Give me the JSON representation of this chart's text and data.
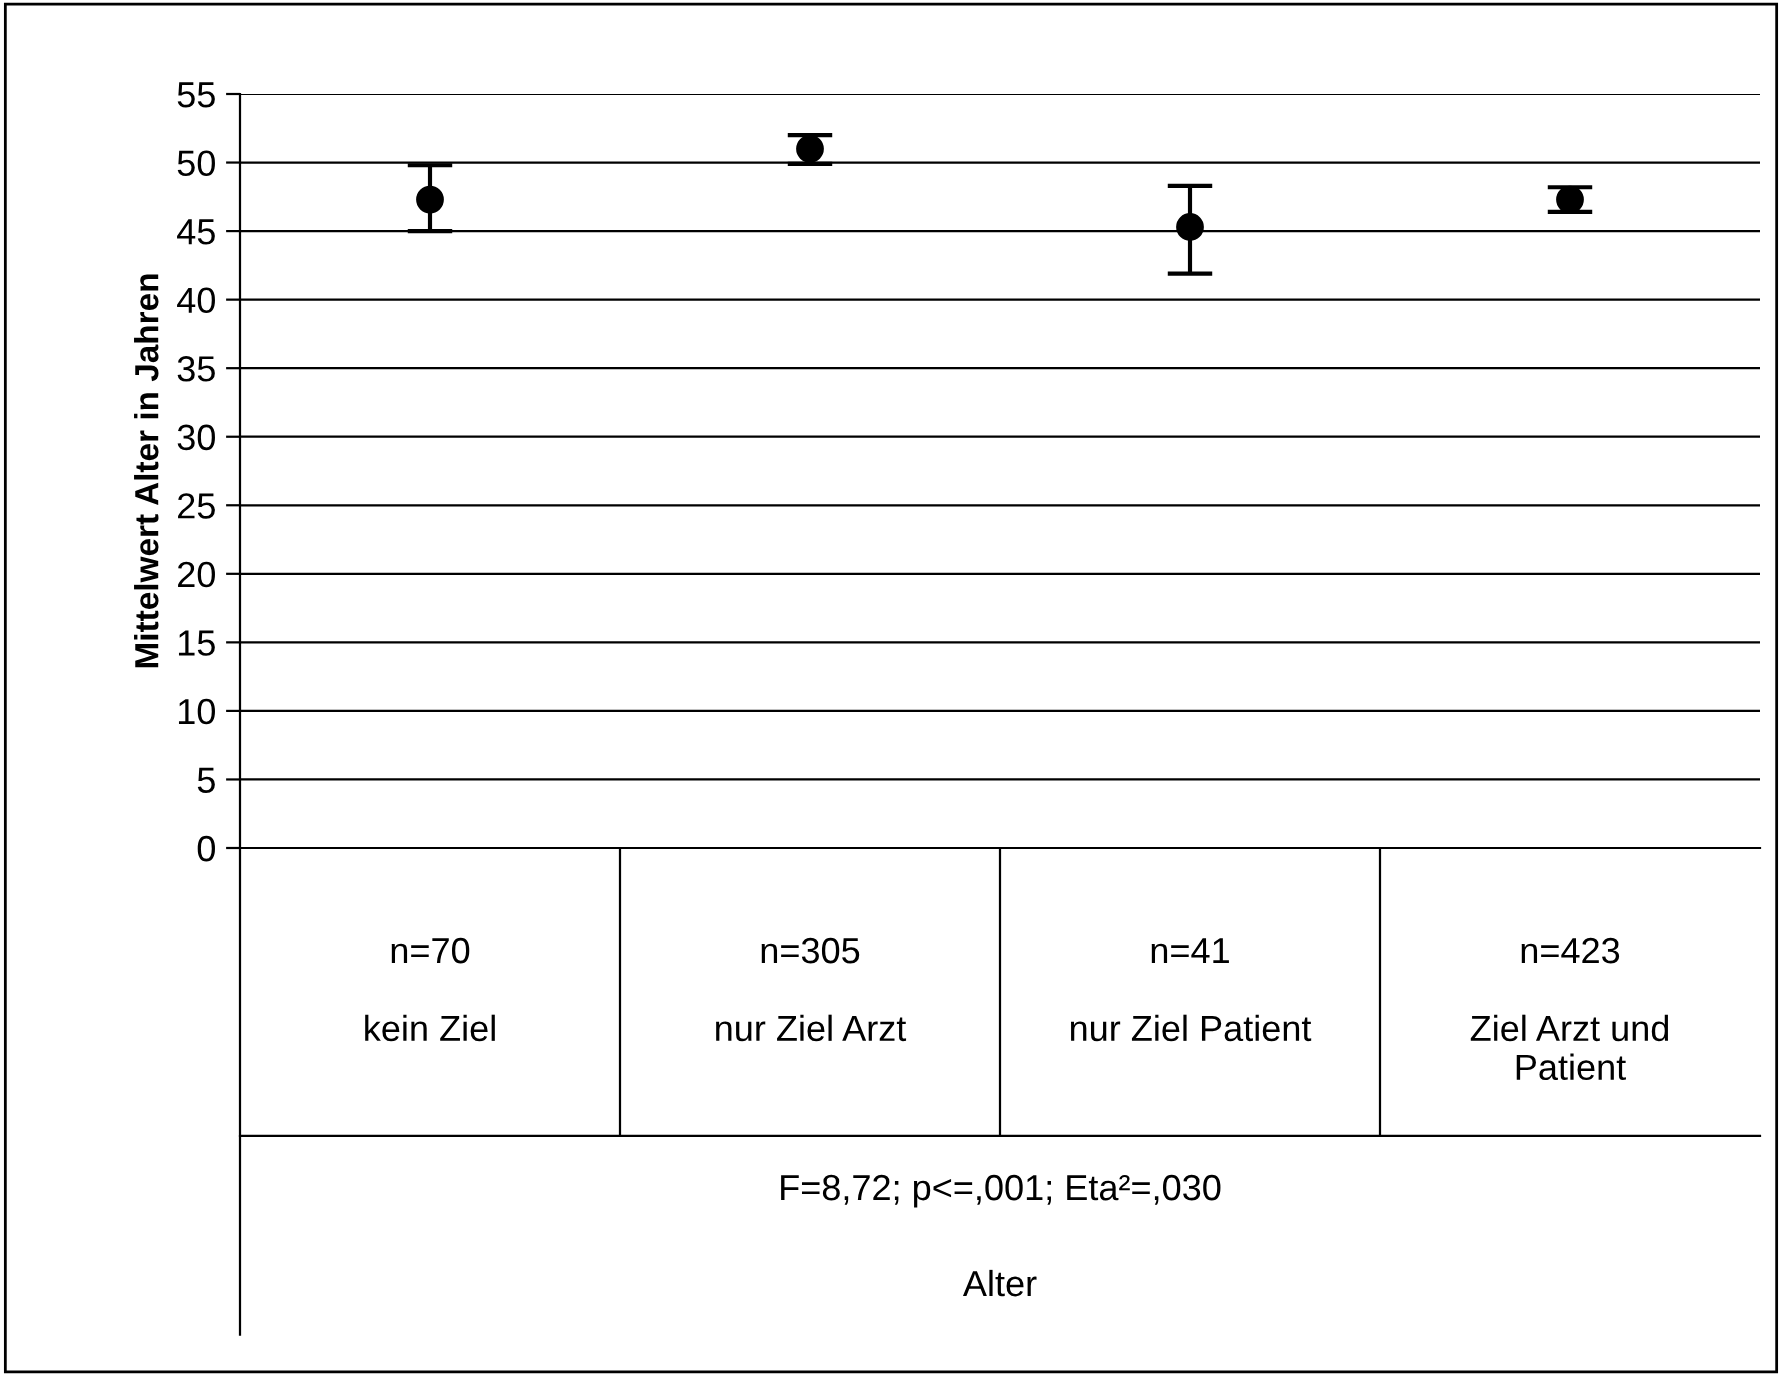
{
  "chart_data": {
    "type": "scatter",
    "ylabel": "Mittelwert Alter in Jahren",
    "categories": [
      "n=70\n\nkein Ziel",
      "n=305\n\nnur Ziel Arzt",
      "n=41\n\nnur Ziel Patient",
      "n=423\n\nZiel Arzt und\nPatient"
    ],
    "values": [
      47.3,
      51.0,
      45.3,
      47.3
    ],
    "errors": [
      [
        45.0,
        49.8
      ],
      [
        49.9,
        52.0
      ],
      [
        41.9,
        48.3
      ],
      [
        46.4,
        48.2
      ]
    ],
    "color": "#000000",
    "marker": "circle",
    "ylim": [
      0,
      55
    ],
    "yticks": [
      0,
      5,
      10,
      15,
      20,
      25,
      30,
      35,
      40,
      45,
      50,
      55
    ],
    "grid": "y",
    "legend": false,
    "annotations": [
      "F=8,72; p<=,001; Eta²=,030",
      "Alter"
    ]
  }
}
